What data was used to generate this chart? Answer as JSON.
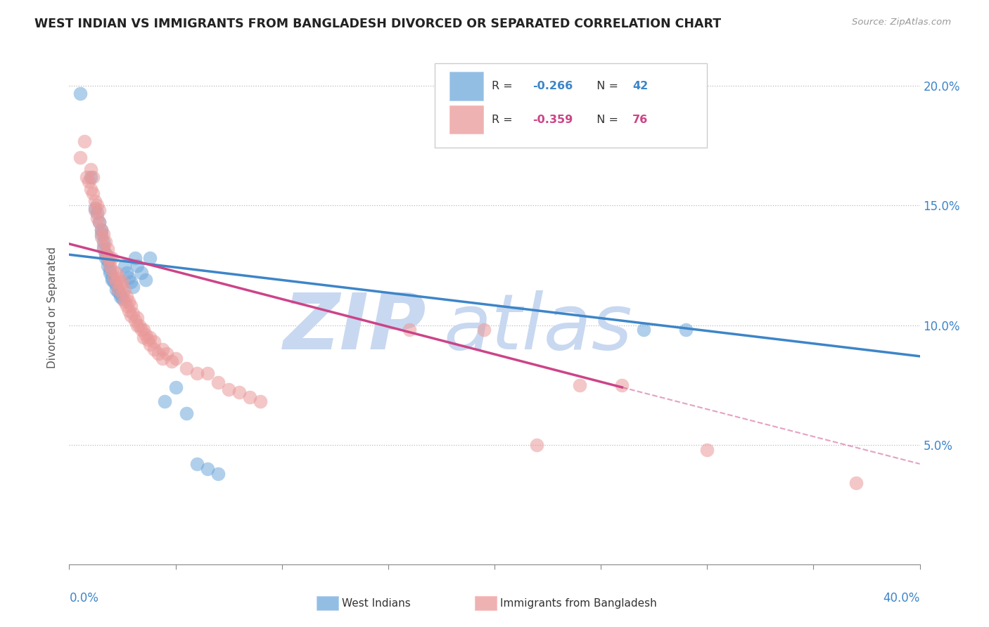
{
  "title": "WEST INDIAN VS IMMIGRANTS FROM BANGLADESH DIVORCED OR SEPARATED CORRELATION CHART",
  "source": "Source: ZipAtlas.com",
  "ylabel": "Divorced or Separated",
  "blue_color": "#6fa8dc",
  "pink_color": "#ea9999",
  "blue_line_color": "#3d85c8",
  "pink_line_color": "#cc4488",
  "legend_label_blue": "West Indians",
  "legend_label_pink": "Immigrants from Bangladesh",
  "blue_scatter": [
    [
      0.005,
      0.197
    ],
    [
      0.01,
      0.162
    ],
    [
      0.012,
      0.149
    ],
    [
      0.013,
      0.147
    ],
    [
      0.014,
      0.143
    ],
    [
      0.015,
      0.14
    ],
    [
      0.015,
      0.138
    ],
    [
      0.016,
      0.135
    ],
    [
      0.016,
      0.132
    ],
    [
      0.017,
      0.13
    ],
    [
      0.017,
      0.128
    ],
    [
      0.018,
      0.127
    ],
    [
      0.018,
      0.125
    ],
    [
      0.019,
      0.123
    ],
    [
      0.019,
      0.122
    ],
    [
      0.02,
      0.12
    ],
    [
      0.02,
      0.119
    ],
    [
      0.021,
      0.118
    ],
    [
      0.022,
      0.117
    ],
    [
      0.022,
      0.115
    ],
    [
      0.023,
      0.114
    ],
    [
      0.024,
      0.113
    ],
    [
      0.024,
      0.112
    ],
    [
      0.025,
      0.111
    ],
    [
      0.026,
      0.125
    ],
    [
      0.027,
      0.122
    ],
    [
      0.028,
      0.12
    ],
    [
      0.029,
      0.118
    ],
    [
      0.03,
      0.116
    ],
    [
      0.031,
      0.128
    ],
    [
      0.032,
      0.125
    ],
    [
      0.034,
      0.122
    ],
    [
      0.036,
      0.119
    ],
    [
      0.038,
      0.128
    ],
    [
      0.045,
      0.068
    ],
    [
      0.05,
      0.074
    ],
    [
      0.055,
      0.063
    ],
    [
      0.06,
      0.042
    ],
    [
      0.065,
      0.04
    ],
    [
      0.07,
      0.038
    ],
    [
      0.27,
      0.098
    ],
    [
      0.29,
      0.098
    ]
  ],
  "pink_scatter": [
    [
      0.005,
      0.17
    ],
    [
      0.007,
      0.177
    ],
    [
      0.008,
      0.162
    ],
    [
      0.009,
      0.16
    ],
    [
      0.01,
      0.165
    ],
    [
      0.01,
      0.157
    ],
    [
      0.011,
      0.162
    ],
    [
      0.011,
      0.155
    ],
    [
      0.012,
      0.152
    ],
    [
      0.012,
      0.148
    ],
    [
      0.013,
      0.15
    ],
    [
      0.013,
      0.145
    ],
    [
      0.014,
      0.148
    ],
    [
      0.014,
      0.143
    ],
    [
      0.015,
      0.14
    ],
    [
      0.015,
      0.137
    ],
    [
      0.016,
      0.138
    ],
    [
      0.016,
      0.133
    ],
    [
      0.017,
      0.135
    ],
    [
      0.017,
      0.13
    ],
    [
      0.018,
      0.132
    ],
    [
      0.018,
      0.128
    ],
    [
      0.019,
      0.128
    ],
    [
      0.019,
      0.125
    ],
    [
      0.02,
      0.128
    ],
    [
      0.02,
      0.123
    ],
    [
      0.021,
      0.12
    ],
    [
      0.022,
      0.122
    ],
    [
      0.022,
      0.118
    ],
    [
      0.023,
      0.12
    ],
    [
      0.023,
      0.115
    ],
    [
      0.024,
      0.117
    ],
    [
      0.025,
      0.118
    ],
    [
      0.025,
      0.113
    ],
    [
      0.026,
      0.115
    ],
    [
      0.026,
      0.11
    ],
    [
      0.027,
      0.112
    ],
    [
      0.027,
      0.108
    ],
    [
      0.028,
      0.11
    ],
    [
      0.028,
      0.106
    ],
    [
      0.029,
      0.108
    ],
    [
      0.029,
      0.104
    ],
    [
      0.03,
      0.105
    ],
    [
      0.031,
      0.102
    ],
    [
      0.032,
      0.103
    ],
    [
      0.032,
      0.1
    ],
    [
      0.033,
      0.1
    ],
    [
      0.034,
      0.098
    ],
    [
      0.035,
      0.098
    ],
    [
      0.035,
      0.095
    ],
    [
      0.036,
      0.096
    ],
    [
      0.037,
      0.094
    ],
    [
      0.038,
      0.095
    ],
    [
      0.038,
      0.092
    ],
    [
      0.04,
      0.09
    ],
    [
      0.04,
      0.093
    ],
    [
      0.042,
      0.088
    ],
    [
      0.044,
      0.09
    ],
    [
      0.044,
      0.086
    ],
    [
      0.046,
      0.088
    ],
    [
      0.048,
      0.085
    ],
    [
      0.05,
      0.086
    ],
    [
      0.055,
      0.082
    ],
    [
      0.06,
      0.08
    ],
    [
      0.065,
      0.08
    ],
    [
      0.07,
      0.076
    ],
    [
      0.075,
      0.073
    ],
    [
      0.08,
      0.072
    ],
    [
      0.085,
      0.07
    ],
    [
      0.09,
      0.068
    ],
    [
      0.16,
      0.098
    ],
    [
      0.195,
      0.098
    ],
    [
      0.22,
      0.05
    ],
    [
      0.24,
      0.075
    ],
    [
      0.26,
      0.075
    ],
    [
      0.3,
      0.048
    ],
    [
      0.37,
      0.034
    ]
  ],
  "xlim": [
    0.0,
    0.4
  ],
  "ylim": [
    0.0,
    0.215
  ],
  "y_ticks": [
    0.05,
    0.1,
    0.15,
    0.2
  ],
  "y_tick_labels": [
    "5.0%",
    "10.0%",
    "15.0%",
    "20.0%"
  ],
  "x_ticks": [
    0.0,
    0.05,
    0.1,
    0.15,
    0.2,
    0.25,
    0.3,
    0.35,
    0.4
  ],
  "blue_line": {
    "x0": 0.0,
    "x1": 0.4,
    "y0": 0.1295,
    "y1": 0.087
  },
  "pink_solid_line": {
    "x0": 0.0,
    "x1": 0.26,
    "y0": 0.134,
    "y1": 0.074
  },
  "pink_dashed_line": {
    "x0": 0.26,
    "x1": 0.4,
    "y0": 0.074,
    "y1": 0.042
  }
}
